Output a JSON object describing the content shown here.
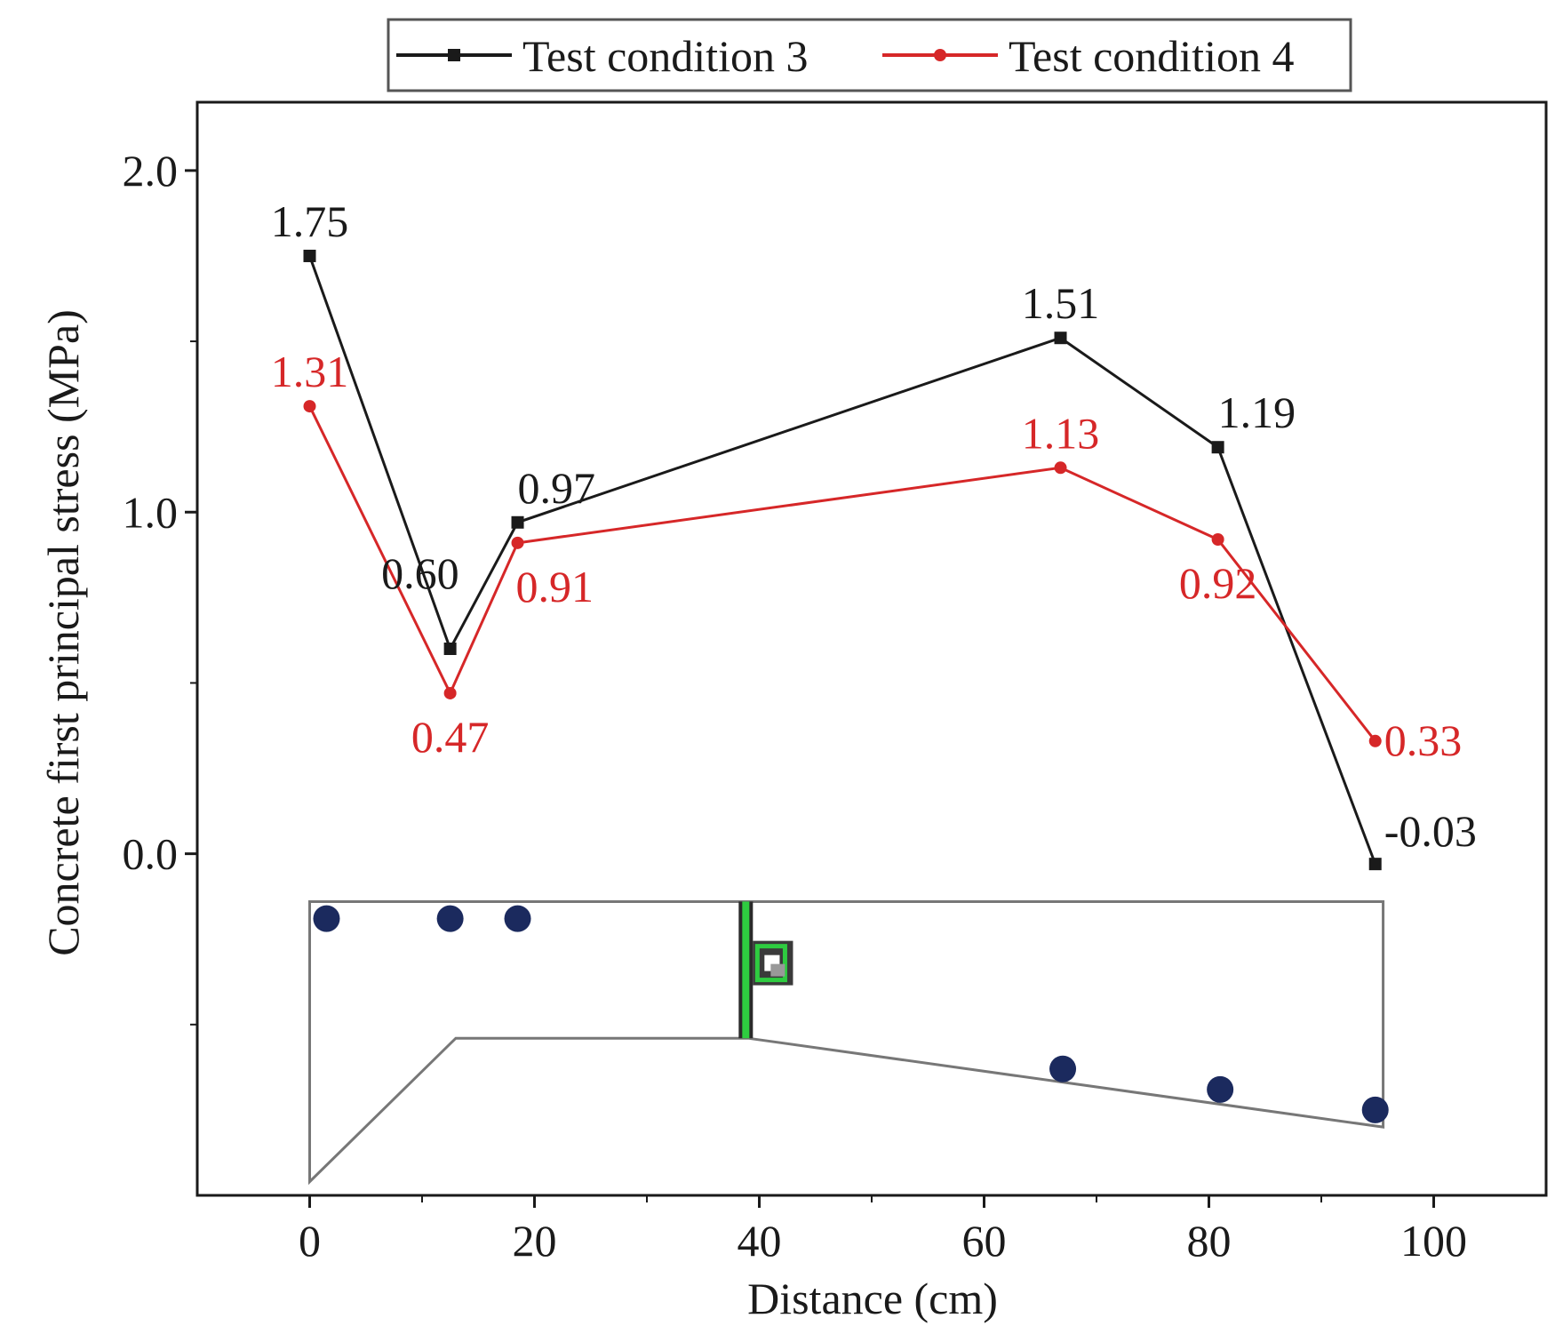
{
  "chart_data": {
    "type": "line",
    "title": "",
    "xlabel": "Distance (cm)",
    "ylabel": "Concrete first principal stress (MPa)",
    "xlim": [
      -10,
      110
    ],
    "ylim": [
      -1.0,
      2.2
    ],
    "xticks": [
      0,
      20,
      40,
      60,
      80,
      100
    ],
    "xtick_labels": [
      "0",
      "20",
      "40",
      "60",
      "80",
      "100"
    ],
    "yticks": [
      0.0,
      1.0,
      2.0
    ],
    "ytick_labels": [
      "0.0",
      "1.0",
      "2.0"
    ],
    "grid": false,
    "legend_position": "top-center-outside",
    "x": [
      0,
      12.5,
      18.5,
      66.8,
      80.8,
      94.8
    ],
    "series": [
      {
        "name": "Test condition 3",
        "color": "#1a1a1a",
        "marker": "square",
        "values": [
          1.75,
          0.6,
          0.97,
          1.51,
          1.19,
          -0.03
        ],
        "labels": [
          "1.75",
          "0.60",
          "0.97",
          "1.51",
          "1.19",
          "-0.03"
        ],
        "label_positions": [
          "above",
          "left",
          "above-right",
          "above",
          "above-right",
          "right"
        ]
      },
      {
        "name": "Test condition 4",
        "color": "#d62728",
        "marker": "circle",
        "values": [
          1.31,
          0.47,
          0.91,
          1.13,
          0.92,
          0.33
        ],
        "labels": [
          "1.31",
          "0.47",
          "0.91",
          "1.13",
          "0.92",
          "0.33"
        ],
        "label_positions": [
          "above",
          "below",
          "below-right",
          "above",
          "below",
          "right"
        ]
      }
    ],
    "inset_schematic": {
      "description_free": true,
      "gauge_color": "#1b2a5e",
      "joint_color": "#2ecc40",
      "gauge_points": [
        {
          "x": 1.5,
          "y": -0.19
        },
        {
          "x": 12.5,
          "y": -0.19
        },
        {
          "x": 18.5,
          "y": -0.19
        },
        {
          "x": 67.0,
          "y": -0.63
        },
        {
          "x": 81.0,
          "y": -0.69
        },
        {
          "x": 94.8,
          "y": -0.75
        }
      ],
      "outline": [
        {
          "x": 0,
          "y": -0.14
        },
        {
          "x": 95.5,
          "y": -0.14
        },
        {
          "x": 95.5,
          "y": -0.8
        },
        {
          "x": 39.0,
          "y": -0.54
        },
        {
          "x": 13.0,
          "y": -0.54
        },
        {
          "x": 0,
          "y": -0.96
        }
      ]
    }
  }
}
